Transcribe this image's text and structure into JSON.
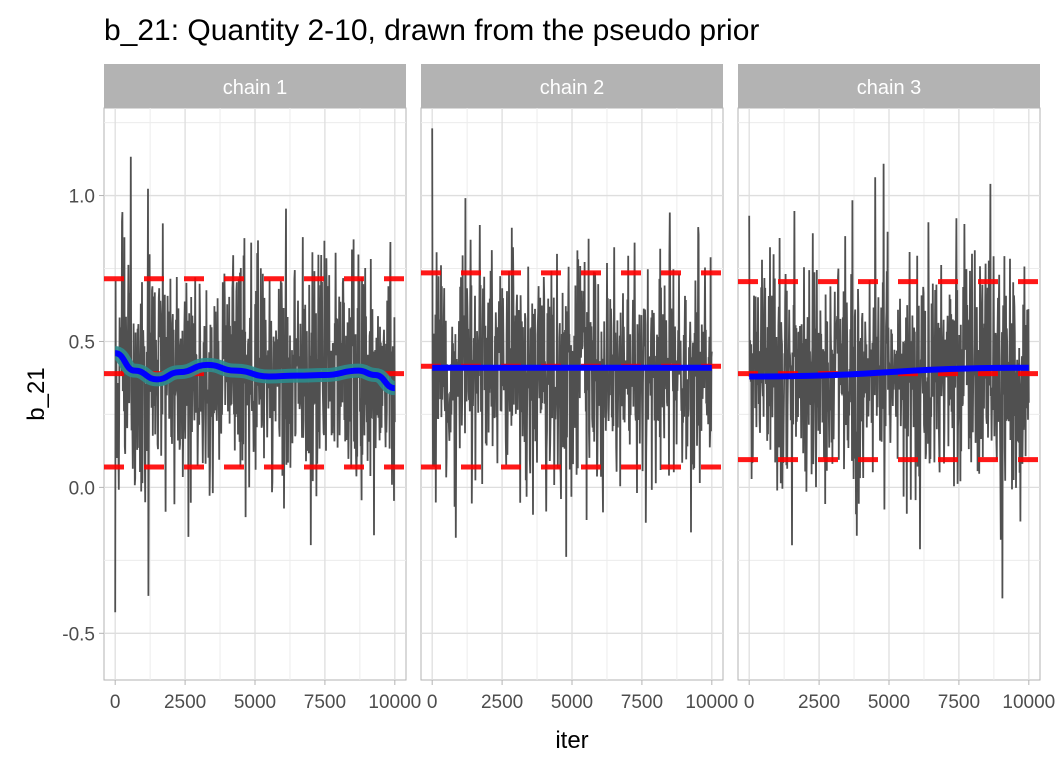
{
  "chart_data": {
    "type": "line",
    "title": "b_21: Quantity 2-10, drawn from the pseudo prior",
    "xlabel": "iter",
    "ylabel": "b_21",
    "xlim": [
      -400,
      10400
    ],
    "ylim": [
      -0.66,
      1.3
    ],
    "x_ticks": [
      0,
      2500,
      5000,
      7500,
      10000
    ],
    "x_tick_labels": [
      "0",
      "2500",
      "5000",
      "7500",
      "10000"
    ],
    "y_ticks": [
      -0.5,
      0.0,
      0.5,
      1.0
    ],
    "y_tick_labels": [
      "-0.5",
      "0.0",
      "0.5",
      "1.0"
    ],
    "grid": true,
    "colors": {
      "trace": "#4d4d4d",
      "smooth": "#0000ff",
      "ribbon": "#2e8b8b",
      "reference": "#ff0000",
      "strip": "#b3b3b3"
    },
    "panels": [
      {
        "strip": "chain 1",
        "trace": {
          "n": 700,
          "mean": 0.39,
          "sd": 0.2,
          "seed": 11
        },
        "reference_lines": [
          0.715,
          0.39,
          0.07
        ],
        "smooth": {
          "x": [
            0,
            700,
            1500,
            2300,
            3300,
            4300,
            5500,
            6500,
            7500,
            8700,
            9300,
            10000
          ],
          "y": [
            0.46,
            0.4,
            0.37,
            0.395,
            0.42,
            0.4,
            0.38,
            0.383,
            0.385,
            0.4,
            0.385,
            0.34
          ]
        }
      },
      {
        "strip": "chain 2",
        "trace": {
          "n": 700,
          "mean": 0.41,
          "sd": 0.2,
          "seed": 23
        },
        "reference_lines": [
          0.735,
          0.415,
          0.07
        ],
        "smooth": {
          "x": [
            0,
            10000
          ],
          "y": [
            0.41,
            0.41
          ]
        }
      },
      {
        "strip": "chain 3",
        "trace": {
          "n": 700,
          "mean": 0.39,
          "sd": 0.2,
          "seed": 37
        },
        "reference_lines": [
          0.705,
          0.39,
          0.095
        ],
        "smooth": {
          "x": [
            0,
            10000
          ],
          "y": [
            0.38,
            0.41
          ]
        }
      }
    ]
  }
}
